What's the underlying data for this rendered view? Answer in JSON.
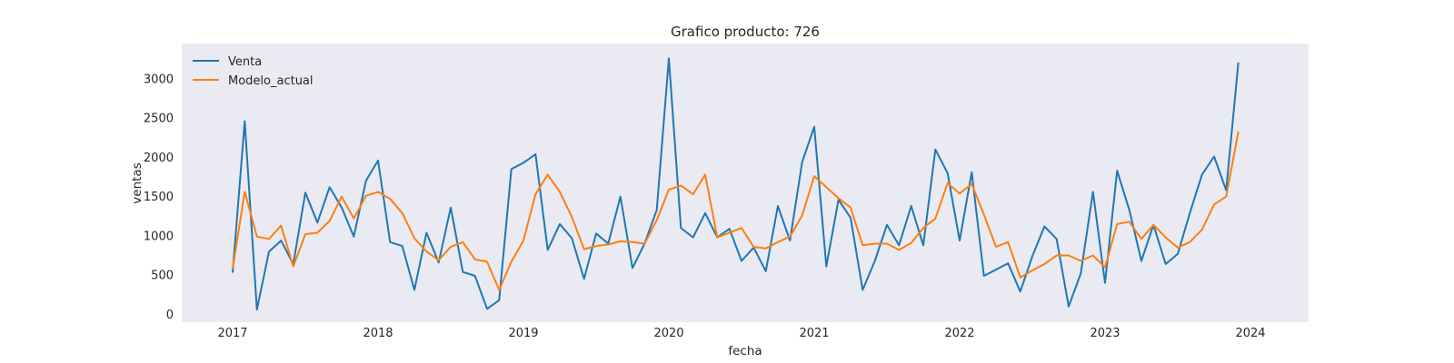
{
  "chart_data": {
    "type": "line",
    "title": "Grafico producto: 726",
    "xlabel": "fecha",
    "ylabel": "ventas",
    "x": [
      "2017-01",
      "2017-02",
      "2017-03",
      "2017-04",
      "2017-05",
      "2017-06",
      "2017-07",
      "2017-08",
      "2017-09",
      "2017-10",
      "2017-11",
      "2017-12",
      "2018-01",
      "2018-02",
      "2018-03",
      "2018-04",
      "2018-05",
      "2018-06",
      "2018-07",
      "2018-08",
      "2018-09",
      "2018-10",
      "2018-11",
      "2018-12",
      "2019-01",
      "2019-02",
      "2019-03",
      "2019-04",
      "2019-05",
      "2019-06",
      "2019-07",
      "2019-08",
      "2019-09",
      "2019-10",
      "2019-11",
      "2019-12",
      "2020-01",
      "2020-02",
      "2020-03",
      "2020-04",
      "2020-05",
      "2020-06",
      "2020-07",
      "2020-08",
      "2020-09",
      "2020-10",
      "2020-11",
      "2020-12",
      "2021-01",
      "2021-02",
      "2021-03",
      "2021-04",
      "2021-05",
      "2021-06",
      "2021-07",
      "2021-08",
      "2021-09",
      "2021-10",
      "2021-11",
      "2021-12",
      "2022-01",
      "2022-02",
      "2022-03",
      "2022-04",
      "2022-05",
      "2022-06",
      "2022-07",
      "2022-08",
      "2022-09",
      "2022-10",
      "2022-11",
      "2022-12",
      "2023-01",
      "2023-02",
      "2023-03",
      "2023-04",
      "2023-05",
      "2023-06",
      "2023-07",
      "2023-08",
      "2023-09",
      "2023-10",
      "2023-11",
      "2023-12"
    ],
    "series": [
      {
        "name": "Venta",
        "color": "#1f77b4",
        "values": [
          530,
          2460,
          60,
          800,
          940,
          640,
          1550,
          1170,
          1620,
          1360,
          990,
          1700,
          1960,
          920,
          870,
          310,
          1040,
          660,
          1360,
          540,
          490,
          70,
          180,
          1850,
          1930,
          2040,
          820,
          1150,
          970,
          450,
          1030,
          900,
          1500,
          590,
          900,
          1330,
          3260,
          1100,
          980,
          1290,
          980,
          1090,
          680,
          850,
          550,
          1380,
          940,
          1940,
          2390,
          610,
          1460,
          1230,
          310,
          680,
          1140,
          880,
          1380,
          880,
          2100,
          1800,
          940,
          1810,
          490,
          570,
          650,
          290,
          740,
          1120,
          960,
          100,
          520,
          1560,
          400,
          1830,
          1330,
          680,
          1140,
          640,
          770,
          1290,
          1780,
          2010,
          1580,
          3210
        ]
      },
      {
        "name": "Modelo_actual",
        "color": "#ff7f0e",
        "values": [
          580,
          1560,
          990,
          960,
          1130,
          610,
          1020,
          1040,
          1190,
          1500,
          1220,
          1510,
          1560,
          1470,
          1290,
          970,
          800,
          690,
          860,
          920,
          700,
          670,
          310,
          670,
          940,
          1530,
          1780,
          1560,
          1240,
          830,
          870,
          890,
          930,
          920,
          900,
          1200,
          1590,
          1640,
          1530,
          1780,
          980,
          1040,
          1100,
          860,
          840,
          920,
          990,
          1260,
          1760,
          1620,
          1480,
          1360,
          880,
          900,
          900,
          820,
          910,
          1100,
          1220,
          1670,
          1540,
          1660,
          1270,
          860,
          920,
          470,
          560,
          640,
          750,
          750,
          680,
          750,
          600,
          1150,
          1180,
          960,
          1140,
          980,
          850,
          920,
          1080,
          1400,
          1500,
          2330
        ]
      }
    ],
    "xticks": [
      "2017",
      "2018",
      "2019",
      "2020",
      "2021",
      "2022",
      "2023",
      "2024"
    ],
    "yticks": [
      0,
      500,
      1000,
      1500,
      2000,
      2500,
      3000
    ],
    "ylim": [
      -100,
      3450
    ],
    "grid": false,
    "legend": "top-left",
    "plot_background": "#eaeaf2"
  }
}
